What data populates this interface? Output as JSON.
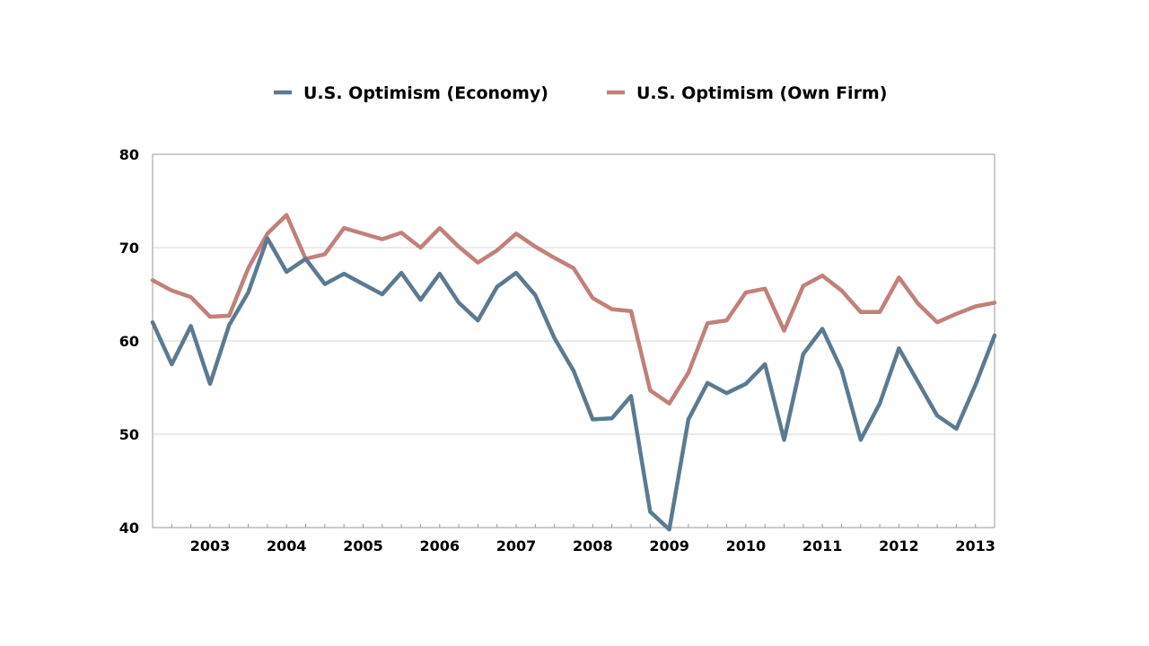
{
  "chart_data": {
    "type": "line",
    "title": "",
    "xlabel": "",
    "ylabel": "",
    "ylim": [
      40,
      80
    ],
    "yticks": [
      40,
      50,
      60,
      70,
      80
    ],
    "grid": true,
    "legend_position": "top-center",
    "x_start": 2002.25,
    "x_end": 2013.25,
    "year_ticks": [
      {
        "label": "2003",
        "year": 2003
      },
      {
        "label": "2004",
        "year": 2004
      },
      {
        "label": "2005",
        "year": 2005
      },
      {
        "label": "2006",
        "year": 2006
      },
      {
        "label": "2007",
        "year": 2007
      },
      {
        "label": "2008",
        "year": 2008
      },
      {
        "label": "2009",
        "year": 2009
      },
      {
        "label": "2010",
        "year": 2010
      },
      {
        "label": "2011",
        "year": 2011
      },
      {
        "label": "2012",
        "year": 2012
      },
      {
        "label": "2013",
        "year": 2013
      }
    ],
    "series": [
      {
        "name": "U.S. Optimism (Economy)",
        "color": "#5b7a91",
        "values": [
          62,
          57.5,
          61.6,
          55.4,
          61.7,
          65.2,
          71,
          67.4,
          68.8,
          66.1,
          67.2,
          66.1,
          65,
          67.3,
          64.4,
          67.2,
          64.1,
          62.2,
          65.8,
          67.3,
          64.9,
          60.3,
          56.8,
          51.6,
          51.7,
          54.1,
          41.7,
          39.8,
          51.6,
          55.5,
          54.4,
          55.4,
          57.5,
          49.4,
          58.6,
          61.3,
          56.9,
          49.4,
          53.3,
          59.2,
          55.6,
          52,
          50.6,
          55.3,
          60.6
        ]
      },
      {
        "name": "U.S. Optimism (Own Firm)",
        "color": "#c28079",
        "values": [
          66.5,
          65.4,
          64.7,
          62.6,
          62.7,
          67.8,
          71.5,
          73.5,
          68.8,
          69.3,
          72.1,
          71.5,
          70.9,
          71.6,
          70,
          72.1,
          70.1,
          68.4,
          69.7,
          71.5,
          70.1,
          68.9,
          67.8,
          64.6,
          63.4,
          63.2,
          54.7,
          53.3,
          56.6,
          61.9,
          62.2,
          65.2,
          65.6,
          61.1,
          65.9,
          67,
          65.4,
          63.1,
          63.1,
          66.8,
          64,
          62,
          62.9,
          63.7,
          64.1
        ]
      }
    ]
  }
}
